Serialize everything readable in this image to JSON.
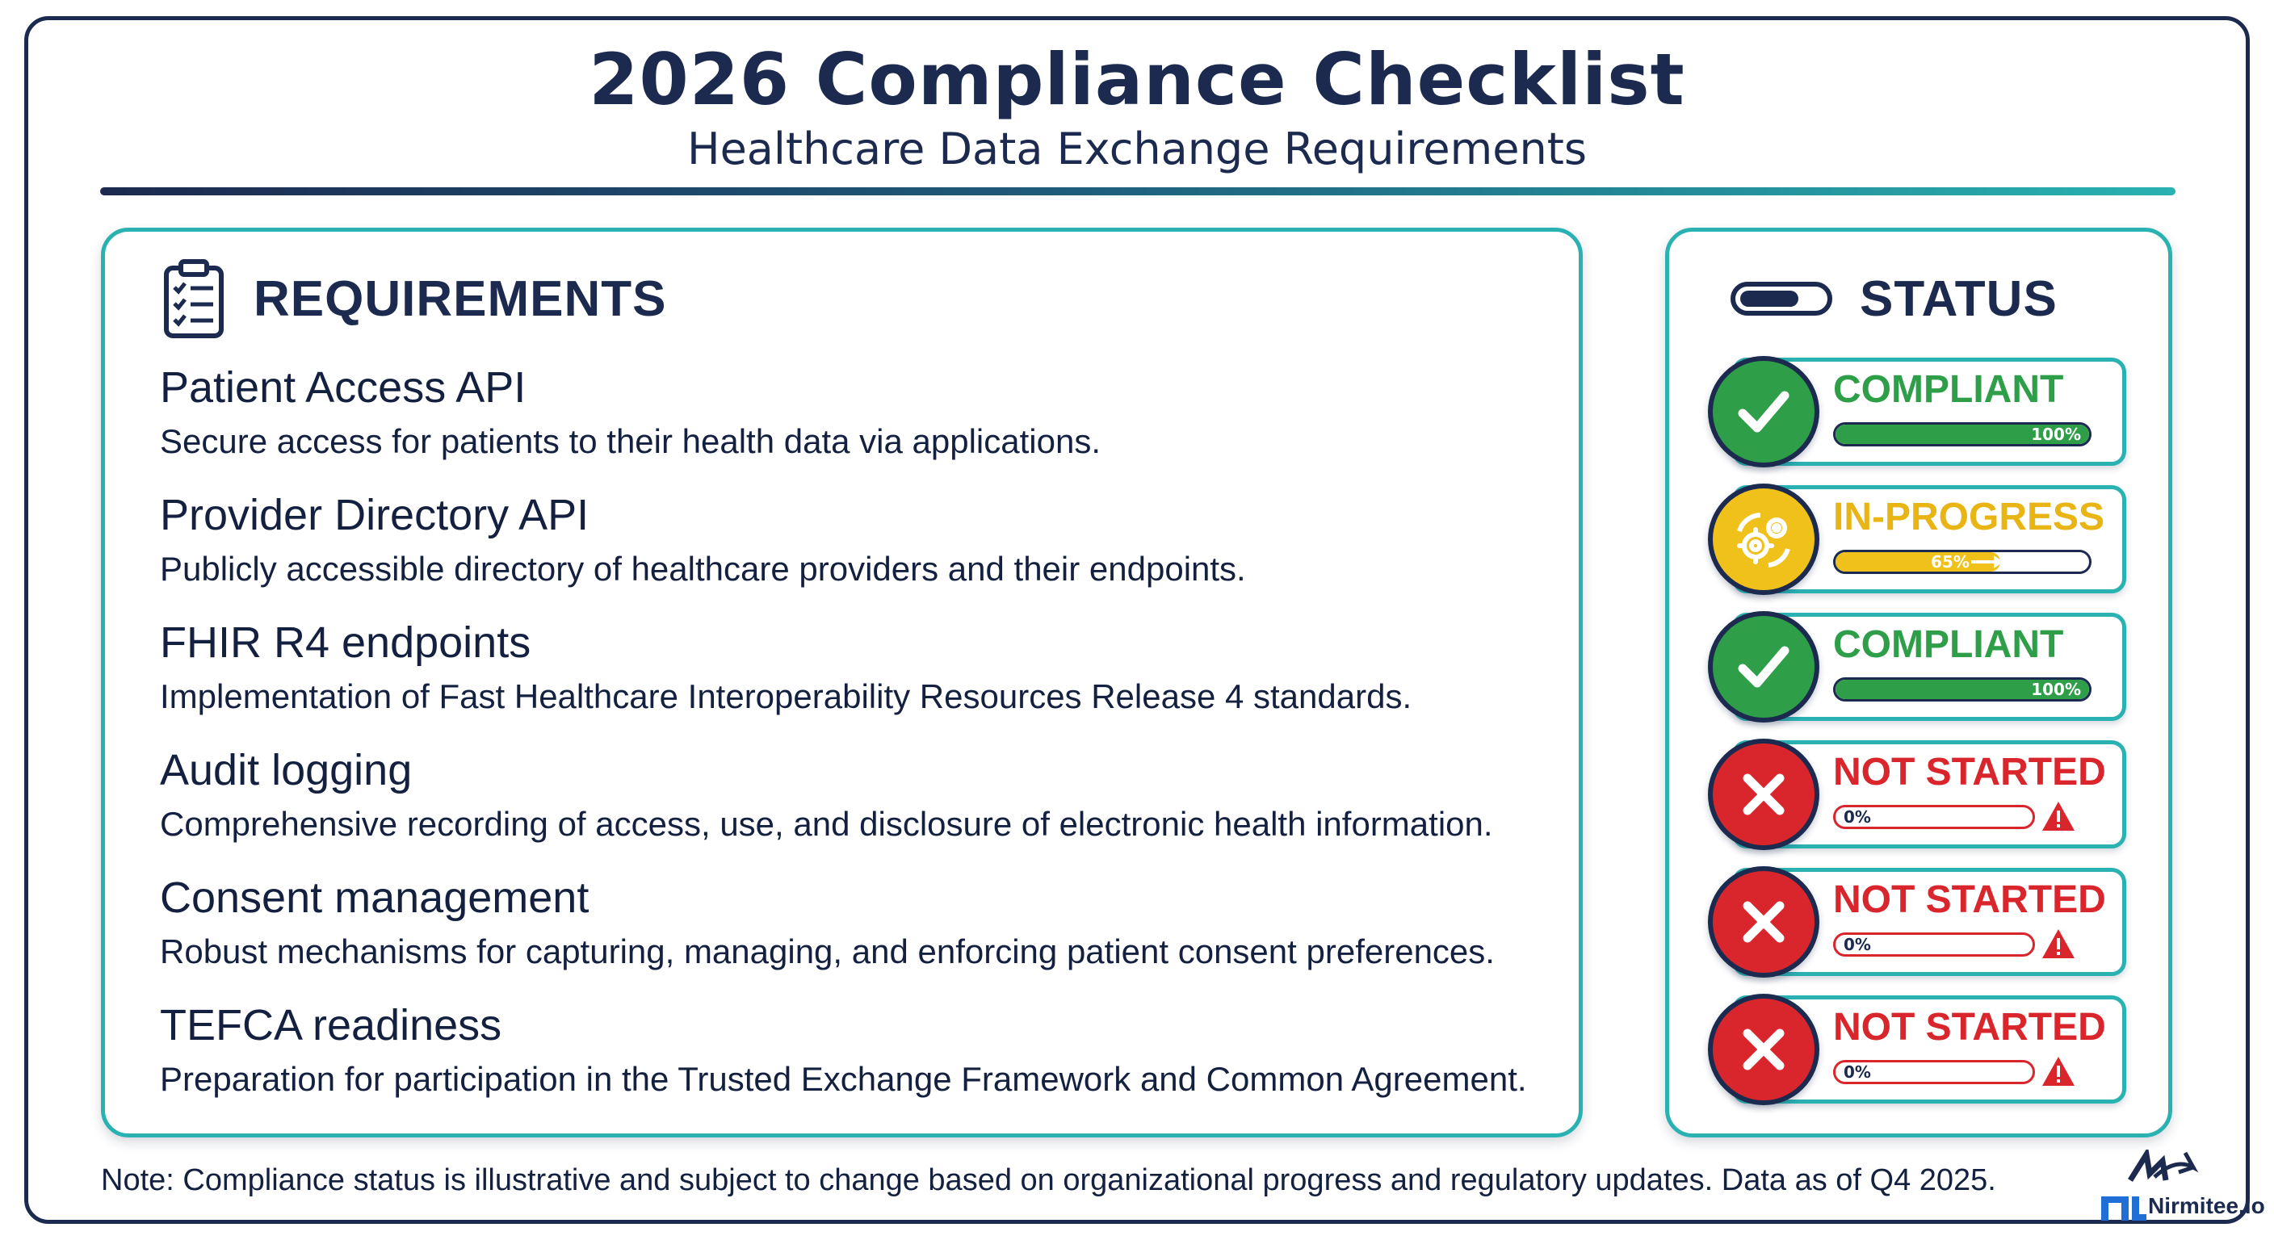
{
  "header": {
    "title": "2026 Compliance Checklist",
    "subtitle": "Healthcare Data Exchange Requirements"
  },
  "requirements_panel": {
    "heading": "REQUIREMENTS",
    "icon": "clipboard-checklist-icon",
    "items": [
      {
        "title": "Patient Access API",
        "description": "Secure access for patients to their health data via applications."
      },
      {
        "title": "Provider Directory API",
        "description": "Publicly accessible directory of healthcare providers and their endpoints."
      },
      {
        "title": "FHIR R4 endpoints",
        "description": "Implementation of Fast Healthcare Interoperability Resources Release 4 standards."
      },
      {
        "title": "Audit logging",
        "description": "Comprehensive recording of access, use, and disclosure of electronic health information."
      },
      {
        "title": "Consent management",
        "description": "Robust mechanisms for capturing, managing, and enforcing patient consent preferences."
      },
      {
        "title": "TEFCA readiness",
        "description": "Preparation for participation in the Trusted Exchange Framework and Common Agreement."
      }
    ]
  },
  "status_panel": {
    "heading": "STATUS",
    "icon": "battery-icon",
    "items": [
      {
        "label": "COMPLIANT",
        "progress_percent": 100,
        "progress_text": "100%",
        "icon": "check-icon",
        "color": "#2e9e48"
      },
      {
        "label": "IN-PROGRESS",
        "progress_percent": 65,
        "progress_text": "65%",
        "icon": "gears-icon",
        "color": "#efc11a"
      },
      {
        "label": "COMPLIANT",
        "progress_percent": 100,
        "progress_text": "100%",
        "icon": "check-icon",
        "color": "#2e9e48"
      },
      {
        "label": "NOT STARTED",
        "progress_percent": 0,
        "progress_text": "0%",
        "icon": "x-icon",
        "color": "#d9262c"
      },
      {
        "label": "NOT STARTED",
        "progress_percent": 0,
        "progress_text": "0%",
        "icon": "x-icon",
        "color": "#d9262c"
      },
      {
        "label": "NOT STARTED",
        "progress_percent": 0,
        "progress_text": "0%",
        "icon": "x-icon",
        "color": "#d9262c"
      }
    ]
  },
  "footer": {
    "note": "Note: Compliance status is illustrative and subject to change based on organizational progress and regulatory updates. Data as of Q4 2025.",
    "logo_text": "Nirmitee.io"
  },
  "colors": {
    "navy": "#1b2a4e",
    "teal": "#2ab1b2",
    "compliant_green": "#2e9e48",
    "in_progress_yellow": "#efc11a",
    "not_started_red": "#d9262c"
  }
}
